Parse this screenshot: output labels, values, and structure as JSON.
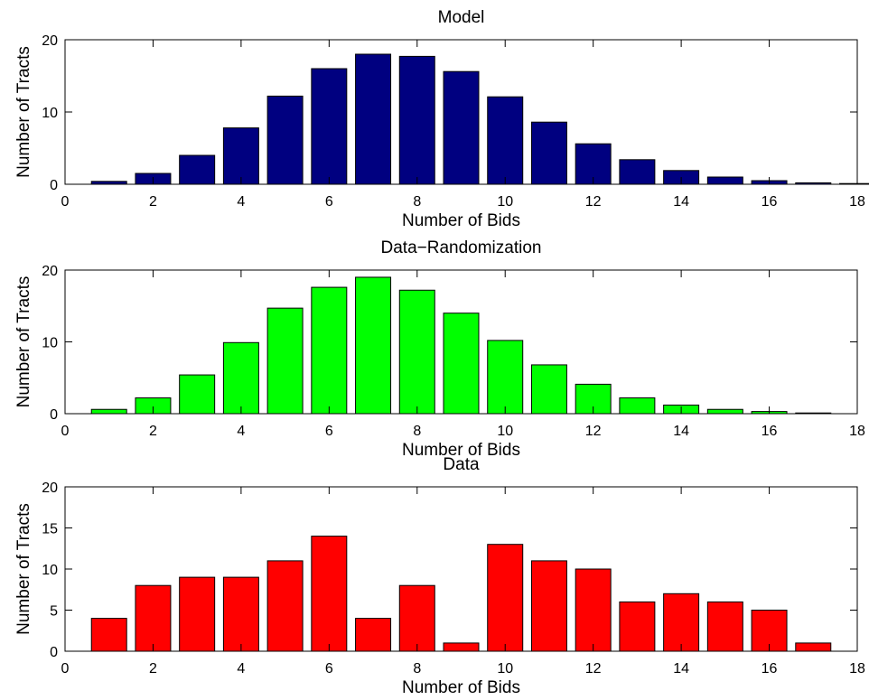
{
  "chart_data": [
    {
      "type": "bar",
      "title": "Model",
      "xlabel": "Number of Bids",
      "ylabel": "Number of Tracts",
      "xlim": [
        0,
        18
      ],
      "ylim": [
        0,
        20
      ],
      "xticks": [
        0,
        2,
        4,
        6,
        8,
        10,
        12,
        14,
        16,
        18
      ],
      "yticks": [
        0,
        10,
        20
      ],
      "bar_color": "#000080",
      "x": [
        1,
        2,
        3,
        4,
        5,
        6,
        7,
        8,
        9,
        10,
        11,
        12,
        13,
        14,
        15,
        16,
        17,
        18
      ],
      "values": [
        0.4,
        1.5,
        4.0,
        7.8,
        12.2,
        16.0,
        18.0,
        17.7,
        15.6,
        12.1,
        8.6,
        5.6,
        3.4,
        1.9,
        1.0,
        0.5,
        0.2,
        0.1
      ]
    },
    {
      "type": "bar",
      "title": "Data−Randomization",
      "xlabel": "Number of Bids",
      "ylabel": "Number of Tracts",
      "xlim": [
        0,
        18
      ],
      "ylim": [
        0,
        20
      ],
      "xticks": [
        0,
        2,
        4,
        6,
        8,
        10,
        12,
        14,
        16,
        18
      ],
      "yticks": [
        0,
        10,
        20
      ],
      "bar_color": "#00ff00",
      "x": [
        1,
        2,
        3,
        4,
        5,
        6,
        7,
        8,
        9,
        10,
        11,
        12,
        13,
        14,
        15,
        16,
        17
      ],
      "values": [
        0.6,
        2.2,
        5.4,
        9.9,
        14.7,
        17.6,
        19.0,
        17.2,
        14.0,
        10.2,
        6.8,
        4.1,
        2.2,
        1.2,
        0.6,
        0.3,
        0.1
      ]
    },
    {
      "type": "bar",
      "title": "Data",
      "xlabel": "Number of Bids",
      "ylabel": "Number of Tracts",
      "xlim": [
        0,
        18
      ],
      "ylim": [
        0,
        20
      ],
      "xticks": [
        0,
        2,
        4,
        6,
        8,
        10,
        12,
        14,
        16,
        18
      ],
      "yticks": [
        0,
        5,
        10,
        15,
        20
      ],
      "bar_color": "#ff0000",
      "x": [
        1,
        2,
        3,
        4,
        5,
        6,
        7,
        8,
        9,
        10,
        11,
        12,
        13,
        14,
        15,
        16,
        17
      ],
      "values": [
        4,
        8,
        9,
        9,
        11,
        14,
        4,
        8,
        1,
        13,
        11,
        10,
        6,
        7,
        6,
        5,
        1
      ]
    }
  ]
}
